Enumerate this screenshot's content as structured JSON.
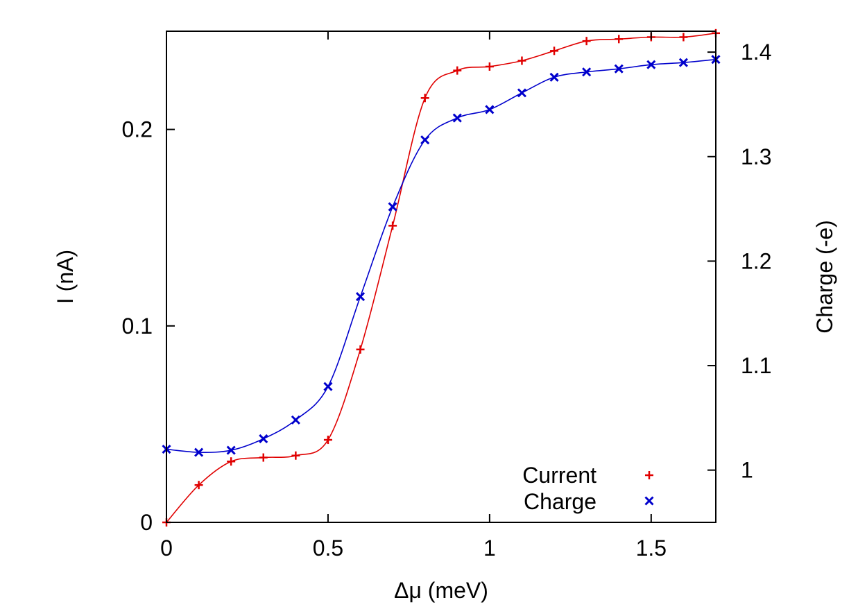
{
  "chart_data": {
    "type": "line",
    "xlabel": "Δμ (meV)",
    "ylabel": "I (nA)",
    "y2label": "Charge (-e)",
    "xlim": [
      0,
      1.7
    ],
    "ylim": [
      0,
      0.25
    ],
    "y2lim": [
      0.95,
      1.42
    ],
    "xticks": [
      0,
      0.5,
      1,
      1.5
    ],
    "xtick_labels": [
      "0",
      "0.5",
      "1",
      "1.5"
    ],
    "yticks": [
      0,
      0.1,
      0.2
    ],
    "ytick_labels": [
      "0",
      "0.1",
      "0.2"
    ],
    "y2ticks": [
      1.0,
      1.1,
      1.2,
      1.3,
      1.4
    ],
    "y2tick_labels": [
      "1",
      "1.1",
      "1.2",
      "1.3",
      "1.4"
    ],
    "legend_position": "bottom-right",
    "series": [
      {
        "name": "Current",
        "axis": "left",
        "marker": "plus",
        "color": "#e00000",
        "x": [
          0,
          0.1,
          0.2,
          0.3,
          0.4,
          0.5,
          0.6,
          0.7,
          0.8,
          0.9,
          1.0,
          1.1,
          1.2,
          1.3,
          1.4,
          1.5,
          1.6,
          1.7
        ],
        "values": [
          0.0,
          0.019,
          0.031,
          0.033,
          0.034,
          0.042,
          0.088,
          0.151,
          0.216,
          0.23,
          0.232,
          0.235,
          0.24,
          0.245,
          0.246,
          0.247,
          0.247,
          0.249
        ]
      },
      {
        "name": "Charge",
        "axis": "right",
        "marker": "cross",
        "color": "#0000cc",
        "x": [
          0,
          0.1,
          0.2,
          0.3,
          0.4,
          0.5,
          0.6,
          0.7,
          0.8,
          0.9,
          1.0,
          1.1,
          1.2,
          1.3,
          1.4,
          1.5,
          1.6,
          1.7
        ],
        "values": [
          1.02,
          1.017,
          1.019,
          1.03,
          1.048,
          1.08,
          1.166,
          1.252,
          1.316,
          1.337,
          1.345,
          1.361,
          1.376,
          1.381,
          1.384,
          1.388,
          1.39,
          1.393
        ]
      }
    ]
  }
}
